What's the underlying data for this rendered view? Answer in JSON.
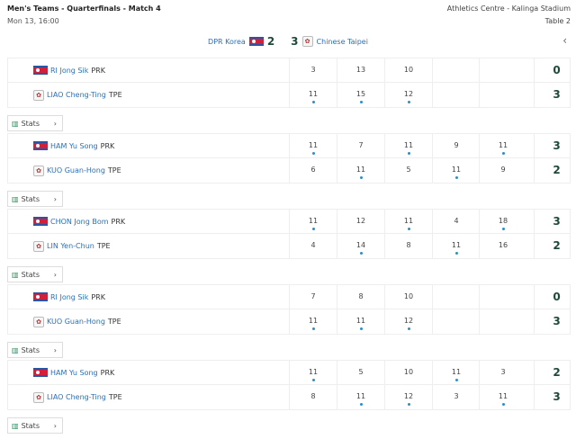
{
  "header": {
    "title": "Men's Teams - Quarterfinals - Match 4",
    "date": "Mon 13, 16:00",
    "venue": "Athletics Centre - Kalinga Stadium",
    "table": "Table 2"
  },
  "score": {
    "team_a": "DPR Korea",
    "score_a": "2",
    "score_b": "3",
    "team_b": "Chinese Taipei",
    "back_icon": "chevron-left-icon"
  },
  "stats_label": "Stats",
  "colors": {
    "link": "#2a6fb8",
    "total": "#1f4a3a",
    "dot": "#2a8fc8"
  },
  "matches": [
    {
      "players": [
        {
          "name": "RI Jong Sik",
          "country": "PRK",
          "games": [
            "3",
            "13",
            "10",
            "",
            ""
          ],
          "won": [
            0,
            0,
            0,
            0,
            0
          ],
          "total": "0"
        },
        {
          "name": "LIAO Cheng-Ting",
          "country": "TPE",
          "games": [
            "11",
            "15",
            "12",
            "",
            ""
          ],
          "won": [
            1,
            1,
            1,
            0,
            0
          ],
          "total": "3"
        }
      ]
    },
    {
      "players": [
        {
          "name": "HAM Yu Song",
          "country": "PRK",
          "games": [
            "11",
            "7",
            "11",
            "9",
            "11"
          ],
          "won": [
            1,
            0,
            1,
            0,
            1
          ],
          "total": "3"
        },
        {
          "name": "KUO Guan-Hong",
          "country": "TPE",
          "games": [
            "6",
            "11",
            "5",
            "11",
            "9"
          ],
          "won": [
            0,
            1,
            0,
            1,
            0
          ],
          "total": "2"
        }
      ]
    },
    {
      "players": [
        {
          "name": "CHON Jong Bom",
          "country": "PRK",
          "games": [
            "11",
            "12",
            "11",
            "4",
            "18"
          ],
          "won": [
            1,
            0,
            1,
            0,
            1
          ],
          "total": "3"
        },
        {
          "name": "LIN Yen-Chun",
          "country": "TPE",
          "games": [
            "4",
            "14",
            "8",
            "11",
            "16"
          ],
          "won": [
            0,
            1,
            0,
            1,
            0
          ],
          "total": "2"
        }
      ]
    },
    {
      "players": [
        {
          "name": "RI Jong Sik",
          "country": "PRK",
          "games": [
            "7",
            "8",
            "10",
            "",
            ""
          ],
          "won": [
            0,
            0,
            0,
            0,
            0
          ],
          "total": "0"
        },
        {
          "name": "KUO Guan-Hong",
          "country": "TPE",
          "games": [
            "11",
            "11",
            "12",
            "",
            ""
          ],
          "won": [
            1,
            1,
            1,
            0,
            0
          ],
          "total": "3"
        }
      ]
    },
    {
      "players": [
        {
          "name": "HAM Yu Song",
          "country": "PRK",
          "games": [
            "11",
            "5",
            "10",
            "11",
            "3"
          ],
          "won": [
            1,
            0,
            0,
            1,
            0
          ],
          "total": "2"
        },
        {
          "name": "LIAO Cheng-Ting",
          "country": "TPE",
          "games": [
            "8",
            "11",
            "12",
            "3",
            "11"
          ],
          "won": [
            0,
            1,
            1,
            0,
            1
          ],
          "total": "3"
        }
      ]
    }
  ]
}
